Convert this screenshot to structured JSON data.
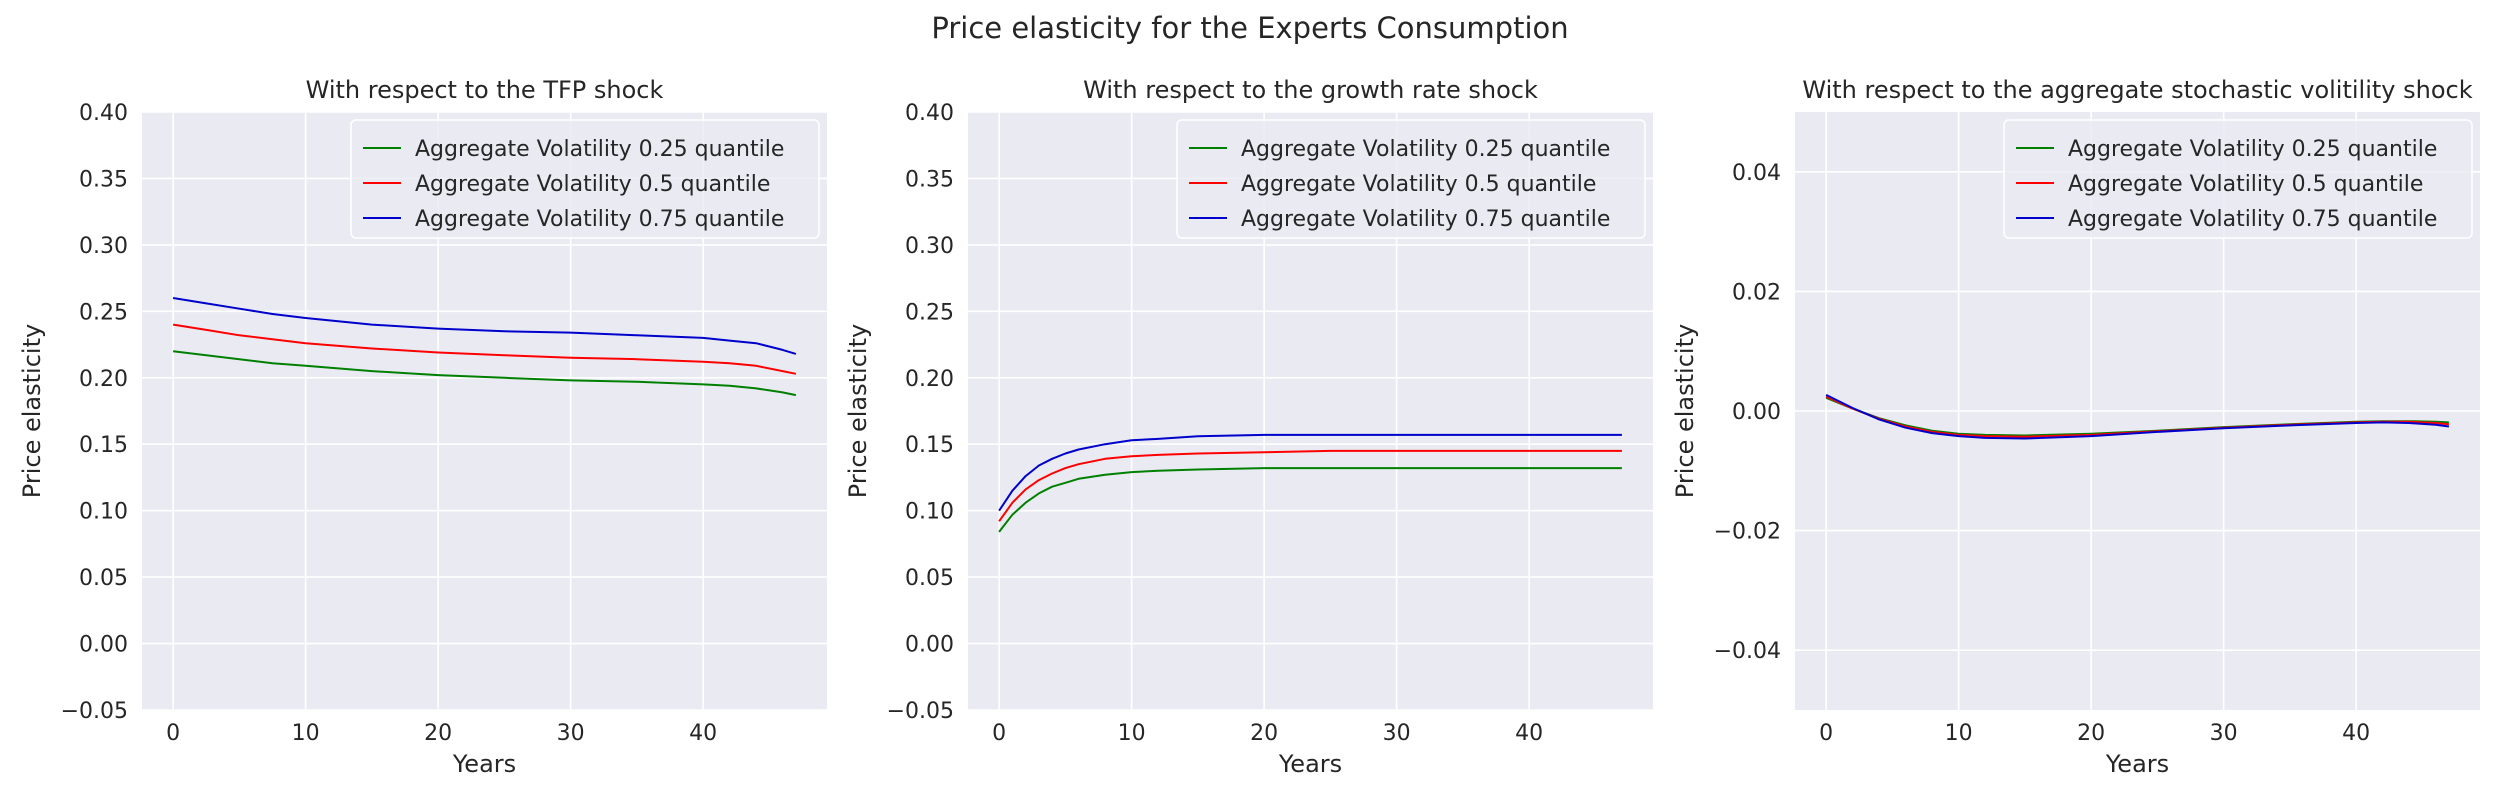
{
  "figure": {
    "suptitle": "Price elasticity for the Experts Consumption"
  },
  "chart_data": [
    {
      "type": "line",
      "title": "With respect to the TFP shock",
      "xlabel": "Years",
      "ylabel": "Price elasticity",
      "xlim": [
        -2.35,
        49.35
      ],
      "ylim": [
        -0.05,
        0.4
      ],
      "xticks": [
        0,
        10,
        20,
        30,
        40
      ],
      "yticks": [
        -0.05,
        0.0,
        0.05,
        0.1,
        0.15,
        0.2,
        0.25,
        0.3,
        0.35,
        0.4
      ],
      "ytick_labels": [
        "−0.05",
        "0.00",
        "0.05",
        "0.10",
        "0.15",
        "0.20",
        "0.25",
        "0.30",
        "0.35",
        "0.40"
      ],
      "grid": true,
      "legend_position": "top-right",
      "x": [
        0,
        2.5,
        5,
        7.5,
        10,
        15,
        20,
        25,
        30,
        35,
        40,
        42,
        44,
        46,
        47
      ],
      "series": [
        {
          "name": "Aggregate Volatility 0.25 quantile",
          "color": "#008000",
          "values": [
            0.22,
            0.217,
            0.214,
            0.211,
            0.209,
            0.205,
            0.202,
            0.2,
            0.198,
            0.197,
            0.195,
            0.194,
            0.192,
            0.189,
            0.187
          ]
        },
        {
          "name": "Aggregate Volatility 0.5 quantile",
          "color": "#ff0000",
          "values": [
            0.24,
            0.236,
            0.232,
            0.229,
            0.226,
            0.222,
            0.219,
            0.217,
            0.215,
            0.214,
            0.212,
            0.211,
            0.209,
            0.205,
            0.203
          ]
        },
        {
          "name": "Aggregate Volatility 0.75 quantile",
          "color": "#0000cc",
          "values": [
            0.26,
            0.256,
            0.252,
            0.248,
            0.245,
            0.24,
            0.237,
            0.235,
            0.234,
            0.232,
            0.23,
            0.228,
            0.226,
            0.221,
            0.218
          ]
        }
      ]
    },
    {
      "type": "line",
      "title": "With respect to the growth rate shock",
      "xlabel": "Years",
      "ylabel": "Price elasticity",
      "xlim": [
        -2.35,
        49.35
      ],
      "ylim": [
        -0.05,
        0.4
      ],
      "xticks": [
        0,
        10,
        20,
        30,
        40
      ],
      "yticks": [
        -0.05,
        0.0,
        0.05,
        0.1,
        0.15,
        0.2,
        0.25,
        0.3,
        0.35,
        0.4
      ],
      "ytick_labels": [
        "−0.05",
        "0.00",
        "0.05",
        "0.10",
        "0.15",
        "0.20",
        "0.25",
        "0.30",
        "0.35",
        "0.40"
      ],
      "grid": true,
      "legend_position": "top-right",
      "x": [
        0,
        1,
        2,
        3,
        4,
        5,
        6,
        8,
        10,
        12,
        15,
        20,
        25,
        30,
        40,
        47
      ],
      "series": [
        {
          "name": "Aggregate Volatility 0.25 quantile",
          "color": "#008000",
          "values": [
            0.084,
            0.097,
            0.106,
            0.113,
            0.118,
            0.121,
            0.124,
            0.127,
            0.129,
            0.13,
            0.131,
            0.132,
            0.132,
            0.132,
            0.132,
            0.132
          ]
        },
        {
          "name": "Aggregate Volatility 0.5 quantile",
          "color": "#ff0000",
          "values": [
            0.092,
            0.106,
            0.116,
            0.123,
            0.128,
            0.132,
            0.135,
            0.139,
            0.141,
            0.142,
            0.143,
            0.144,
            0.145,
            0.145,
            0.145,
            0.145
          ]
        },
        {
          "name": "Aggregate Volatility 0.75 quantile",
          "color": "#0000cc",
          "values": [
            0.1,
            0.115,
            0.126,
            0.134,
            0.139,
            0.143,
            0.146,
            0.15,
            0.153,
            0.154,
            0.156,
            0.157,
            0.157,
            0.157,
            0.157,
            0.157
          ]
        }
      ]
    },
    {
      "type": "line",
      "title": "With respect to the aggregate stochastic volitility shock",
      "xlabel": "Years",
      "ylabel": "Price elasticity",
      "xlim": [
        -2.35,
        49.35
      ],
      "ylim": [
        -0.05,
        0.05
      ],
      "xticks": [
        0,
        10,
        20,
        30,
        40
      ],
      "yticks": [
        -0.04,
        -0.02,
        0.0,
        0.02,
        0.04
      ],
      "ytick_labels": [
        "−0.04",
        "−0.02",
        "0.00",
        "0.02",
        "0.04"
      ],
      "grid": true,
      "legend_position": "top-right",
      "x": [
        0,
        2,
        4,
        6,
        8,
        10,
        12,
        15,
        20,
        25,
        30,
        35,
        40,
        42,
        44,
        46,
        47
      ],
      "series": [
        {
          "name": "Aggregate Volatility 0.25 quantile",
          "color": "#008000",
          "values": [
            0.0022,
            0.0004,
            -0.0012,
            -0.0024,
            -0.0033,
            -0.0038,
            -0.004,
            -0.0041,
            -0.0038,
            -0.0033,
            -0.0027,
            -0.0022,
            -0.0018,
            -0.0017,
            -0.0017,
            -0.0018,
            -0.0019
          ]
        },
        {
          "name": "Aggregate Volatility 0.5 quantile",
          "color": "#ff0000",
          "values": [
            0.0024,
            0.0004,
            -0.0013,
            -0.0026,
            -0.0035,
            -0.004,
            -0.0042,
            -0.0043,
            -0.004,
            -0.0034,
            -0.0028,
            -0.0023,
            -0.0019,
            -0.0018,
            -0.0018,
            -0.002,
            -0.0022
          ]
        },
        {
          "name": "Aggregate Volatility 0.75 quantile",
          "color": "#0000cc",
          "values": [
            0.0027,
            0.0005,
            -0.0014,
            -0.0028,
            -0.0037,
            -0.0042,
            -0.0045,
            -0.0046,
            -0.0042,
            -0.0035,
            -0.0029,
            -0.0024,
            -0.002,
            -0.0019,
            -0.002,
            -0.0023,
            -0.0026
          ]
        }
      ]
    }
  ]
}
